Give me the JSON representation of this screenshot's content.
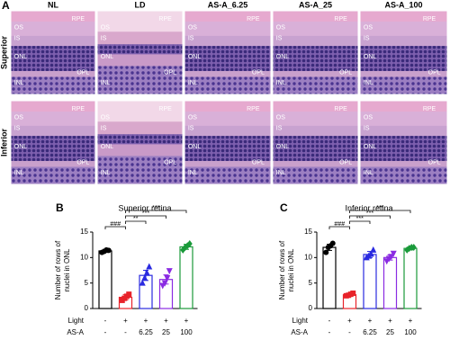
{
  "panel_a": {
    "label": "A",
    "columns": [
      "NL",
      "LD",
      "AS-A_6.25",
      "AS-A_25",
      "AS-A_100"
    ],
    "rows": [
      "Superior",
      "Inferior"
    ],
    "layer_labels": [
      "RPE",
      "OS",
      "IS",
      "ONL",
      "OPL",
      "INL"
    ]
  },
  "chart_data": [
    {
      "type": "bar",
      "panel_label": "B",
      "title": "Superior retina",
      "ylabel_lines": [
        "Number of rows of",
        "nuclei in ONL"
      ],
      "ylim": [
        0,
        15
      ],
      "yticks": [
        0,
        5,
        10,
        15
      ],
      "series": {
        "values": [
          11.3,
          2.2,
          6.5,
          5.7,
          12.1
        ],
        "errors": [
          0.3,
          0.5,
          1.0,
          0.9,
          0.5
        ],
        "colors": [
          "#000000",
          "#e8232a",
          "#2a2ae0",
          "#8a2be2",
          "#1a9a3a"
        ],
        "markers": [
          "circle",
          "square",
          "triangle",
          "triangle-down",
          "diamond"
        ],
        "points": [
          [
            11.0,
            11.2,
            11.5,
            11.4
          ],
          [
            1.6,
            2.0,
            2.4,
            2.8
          ],
          [
            5.0,
            6.0,
            7.0,
            8.2
          ],
          [
            4.5,
            5.0,
            6.0,
            7.4
          ],
          [
            11.5,
            12.0,
            12.3,
            12.7
          ]
        ]
      },
      "annotations": [
        {
          "from": 0,
          "to": 1,
          "text": "###"
        },
        {
          "from": 1,
          "to": 2,
          "text": "**"
        },
        {
          "from": 1,
          "to": 3,
          "text": "***"
        },
        {
          "from": 1,
          "to": 4,
          "text": "***"
        }
      ],
      "treatment_rows": [
        {
          "name": "Light",
          "labels": [
            "-",
            "+",
            "+",
            "+",
            "+"
          ]
        },
        {
          "name": "AS-A",
          "labels": [
            "-",
            "-",
            "6.25",
            "25",
            "100"
          ]
        }
      ]
    },
    {
      "type": "bar",
      "panel_label": "C",
      "title": "Inferior retina",
      "ylabel_lines": [
        "Number of rows of",
        "nuclei in ONL"
      ],
      "ylim": [
        0,
        15
      ],
      "yticks": [
        0,
        5,
        10,
        15
      ],
      "series": {
        "values": [
          12.0,
          2.7,
          10.6,
          10.0,
          11.8
        ],
        "errors": [
          0.6,
          0.2,
          0.6,
          0.5,
          0.3
        ],
        "colors": [
          "#000000",
          "#e8232a",
          "#2a2ae0",
          "#8a2be2",
          "#1a9a3a"
        ],
        "markers": [
          "circle",
          "square",
          "triangle",
          "triangle-down",
          "diamond"
        ],
        "points": [
          [
            11.0,
            12.0,
            12.3,
            12.8
          ],
          [
            2.5,
            2.6,
            2.8,
            3.0
          ],
          [
            10.0,
            10.3,
            10.7,
            11.5
          ],
          [
            9.3,
            9.8,
            10.2,
            10.8
          ],
          [
            11.5,
            11.8,
            12.0,
            12.0
          ]
        ]
      },
      "annotations": [
        {
          "from": 0,
          "to": 1,
          "text": "###"
        },
        {
          "from": 1,
          "to": 2,
          "text": "***"
        },
        {
          "from": 1,
          "to": 3,
          "text": "***"
        },
        {
          "from": 1,
          "to": 4,
          "text": "***"
        }
      ],
      "treatment_rows": [
        {
          "name": "Light",
          "labels": [
            "-",
            "+",
            "+",
            "+",
            "+"
          ]
        },
        {
          "name": "AS-A",
          "labels": [
            "-",
            "-",
            "6.25",
            "25",
            "100"
          ]
        }
      ]
    }
  ]
}
